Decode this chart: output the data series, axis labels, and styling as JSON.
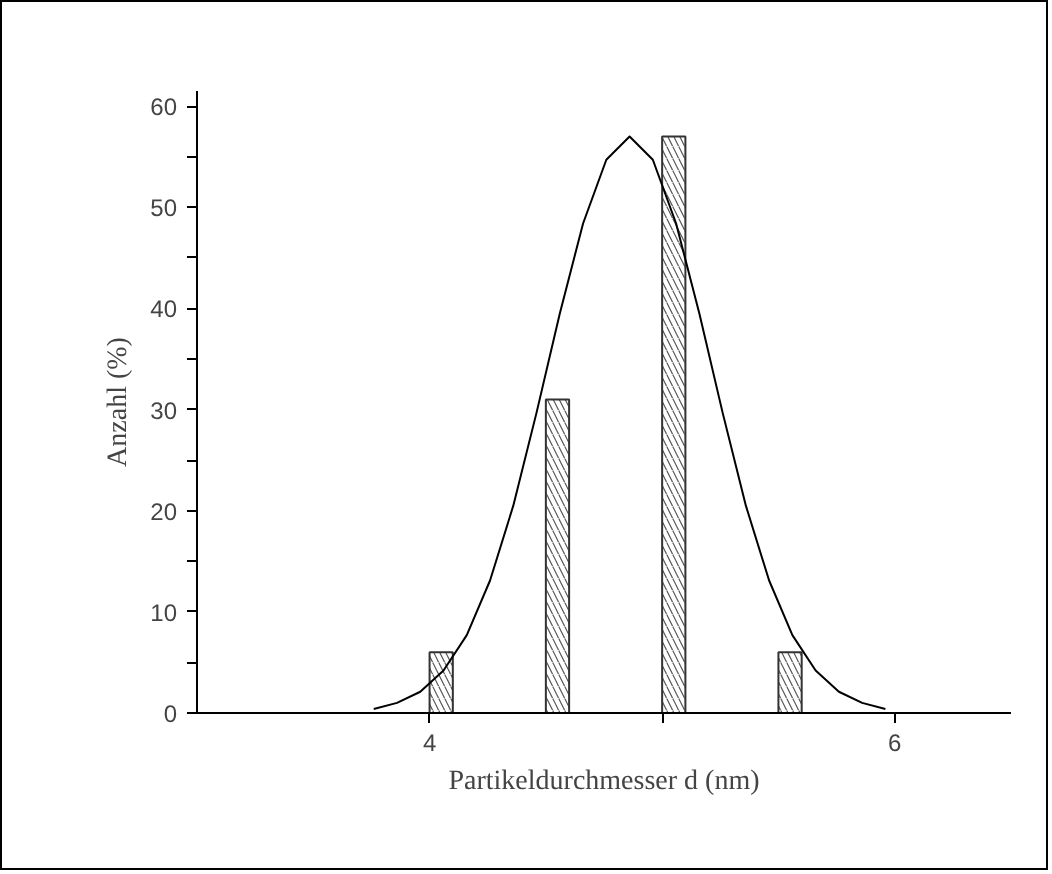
{
  "chart_data": {
    "type": "bar",
    "xlabel": "Partikeldurchmesser d (nm)",
    "ylabel": "Anzahl (%)",
    "xlim": [
      3,
      6.5
    ],
    "xticks": [
      4,
      {
        "value": 5,
        "label": null
      },
      6
    ],
    "ylim": [
      0,
      61.5
    ],
    "yticks": [
      0,
      {
        "value": 5,
        "label": null
      },
      10,
      {
        "value": 15,
        "label": null
      },
      20,
      {
        "value": 25,
        "label": null
      },
      30,
      {
        "value": 35,
        "label": null
      },
      40,
      {
        "value": 45,
        "label": null
      },
      50,
      {
        "value": 55,
        "label": null
      },
      60
    ],
    "grid": false,
    "series": [
      {
        "color": "#ffffff",
        "x": [
          4.05,
          4.55,
          5.05,
          5.55
        ],
        "values": [
          6,
          31,
          57,
          6
        ]
      },
      {
        "type": "line",
        "color": "#000000",
        "x": [
          3.76,
          3.86,
          3.96,
          4.06,
          4.16,
          4.26,
          4.36,
          4.46,
          4.56,
          4.66,
          4.76,
          4.86,
          4.96,
          5.06,
          5.16,
          5.26,
          5.36,
          5.46,
          5.56,
          5.66,
          5.76,
          5.86,
          5.96
        ],
        "values": [
          0.4,
          1.0,
          2.1,
          4.2,
          7.7,
          13.1,
          20.5,
          29.7,
          39.5,
          48.4,
          54.7,
          57,
          54.7,
          48.4,
          39.5,
          29.7,
          20.5,
          13.1,
          7.7,
          4.2,
          2.1,
          1.0,
          0.4
        ]
      }
    ]
  }
}
